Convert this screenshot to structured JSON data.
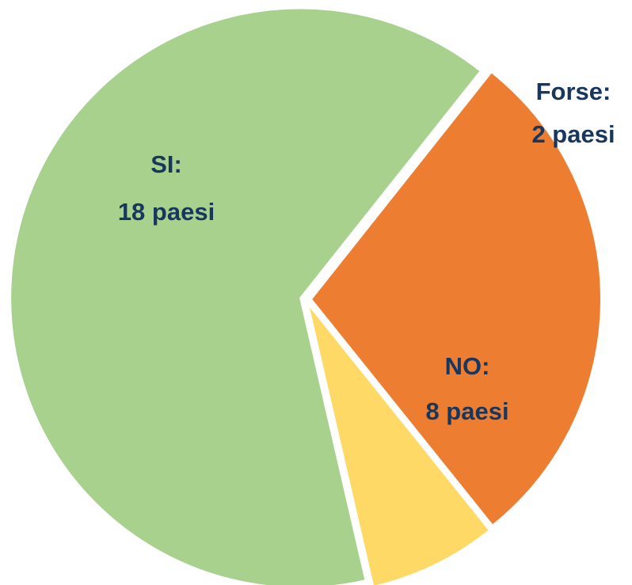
{
  "chart_data": {
    "type": "pie",
    "categories": [
      "SI:",
      "NO:",
      "Forse:"
    ],
    "values": [
      18,
      8,
      2
    ],
    "value_labels": [
      "18 paesi",
      "8 paesi",
      "2 paesi"
    ],
    "colors": [
      "#a9d18e",
      "#ed7d31",
      "#ffd966"
    ]
  }
}
